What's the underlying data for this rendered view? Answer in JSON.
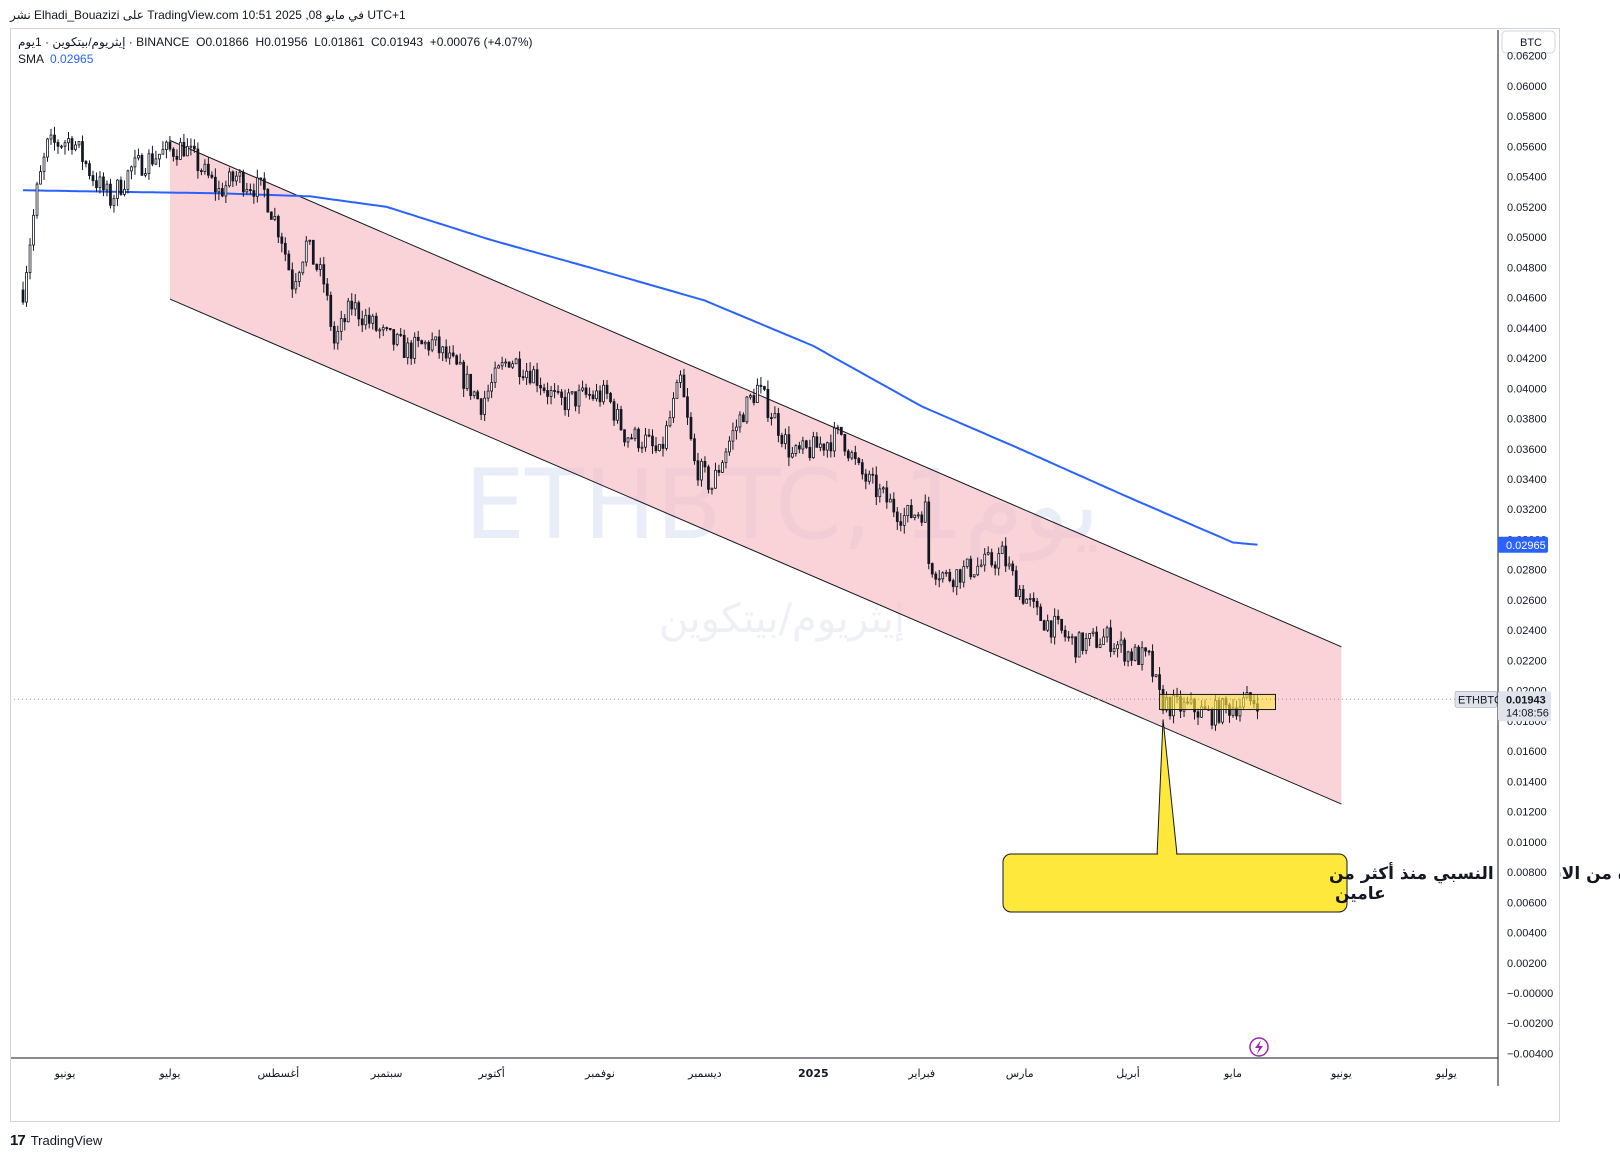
{
  "header": {
    "publish_line": "نشر Elhadi_Bouazizi على TradingView.com 10:51 2025 ,08 في مايو UTC+1"
  },
  "legend": {
    "symbol_line": "إيثريوم/بيتكوين · 1يوم · BINANCE",
    "open_key": "O",
    "open_val": "0.01866",
    "high_key": "H",
    "high_val": "0.01956",
    "low_key": "L",
    "low_val": "0.01861",
    "close_key": "C",
    "close_val": "0.01943",
    "change": "+0.00076 (+4.07%)",
    "sma_label": "SMA",
    "sma_value": "0.02965"
  },
  "watermark": {
    "main": "ETHBTC, 1يوم",
    "sub": "إيثريوم/بيتكوين"
  },
  "price_scale": {
    "currency": "BTC",
    "price_tag_symbol": "ETHBTC",
    "price_tag_value": "0.01943",
    "countdown": "14:08:56",
    "sma_tag_value": "0.02965"
  },
  "annotation": {
    "line1": "أطول فترة من الاستقرار النسبي منذ أكثر من",
    "line2": "عامين"
  },
  "footer": {
    "brand": "TradingView"
  },
  "colors": {
    "candle": "#131722",
    "sma": "#2962ff",
    "channel_fill": "#f8bbc4",
    "channel_line": "#131722",
    "callout_fill": "#ffe83c",
    "sma_tag_bg": "#2962ff",
    "price_tag_bg": "#e0e3eb"
  },
  "chart_data": {
    "type": "candlestick",
    "symbol": "ETHBTC",
    "ylim": [
      -0.0043,
      0.0637
    ],
    "y_ticks": [
      "0.06200",
      "0.06000",
      "0.05800",
      "0.05600",
      "0.05400",
      "0.05200",
      "0.05000",
      "0.04800",
      "0.04600",
      "0.04400",
      "0.04200",
      "0.04000",
      "0.03800",
      "0.03600",
      "0.03400",
      "0.03200",
      "0.03000",
      "0.02800",
      "0.02600",
      "0.02400",
      "0.02200",
      "0.02000",
      "0.01800",
      "0.01600",
      "0.01400",
      "0.01200",
      "0.01000",
      "0.00800",
      "0.00600",
      "0.00400",
      "0.00200",
      "−0.00000",
      "−0.00200",
      "−0.00400"
    ],
    "x_ticks": [
      {
        "label": "يونيو",
        "date": "2024-06-01"
      },
      {
        "label": "يوليو",
        "date": "2024-07-01"
      },
      {
        "label": "أغسطس",
        "date": "2024-08-01"
      },
      {
        "label": "سبتمبر",
        "date": "2024-09-01"
      },
      {
        "label": "أكتوبر",
        "date": "2024-10-01"
      },
      {
        "label": "نوفمبر",
        "date": "2024-11-01"
      },
      {
        "label": "ديسمبر",
        "date": "2024-12-01"
      },
      {
        "label": "2025",
        "date": "2025-01-01"
      },
      {
        "label": "فبراير",
        "date": "2025-02-01"
      },
      {
        "label": "مارس",
        "date": "2025-03-01"
      },
      {
        "label": "أبريل",
        "date": "2025-04-01"
      },
      {
        "label": "مايو",
        "date": "2025-05-01"
      },
      {
        "label": "يونيو",
        "date": "2025-06-01"
      },
      {
        "label": "يوليو",
        "date": "2025-07-01"
      }
    ],
    "price_path": [
      [
        "2024-05-20",
        0.0465
      ],
      [
        "2024-05-24",
        0.053
      ],
      [
        "2024-05-27",
        0.056
      ],
      [
        "2024-06-03",
        0.0565
      ],
      [
        "2024-06-09",
        0.054
      ],
      [
        "2024-06-14",
        0.0525
      ],
      [
        "2024-06-20",
        0.0545
      ],
      [
        "2024-06-28",
        0.0555
      ],
      [
        "2024-07-05",
        0.056
      ],
      [
        "2024-07-10",
        0.0545
      ],
      [
        "2024-07-15",
        0.053
      ],
      [
        "2024-07-20",
        0.054
      ],
      [
        "2024-07-28",
        0.053
      ],
      [
        "2024-08-02",
        0.05
      ],
      [
        "2024-08-05",
        0.047
      ],
      [
        "2024-08-09",
        0.0495
      ],
      [
        "2024-08-14",
        0.047
      ],
      [
        "2024-08-17",
        0.043
      ],
      [
        "2024-08-22",
        0.0455
      ],
      [
        "2024-08-31",
        0.0435
      ],
      [
        "2024-09-07",
        0.0425
      ],
      [
        "2024-09-14",
        0.043
      ],
      [
        "2024-09-22",
        0.041
      ],
      [
        "2024-09-28",
        0.039
      ],
      [
        "2024-10-03",
        0.041
      ],
      [
        "2024-10-06",
        0.042
      ],
      [
        "2024-10-13",
        0.041
      ],
      [
        "2024-10-20",
        0.039
      ],
      [
        "2024-10-28",
        0.0395
      ],
      [
        "2024-11-03",
        0.0395
      ],
      [
        "2024-11-08",
        0.037
      ],
      [
        "2024-11-14",
        0.0365
      ],
      [
        "2024-11-18",
        0.0355
      ],
      [
        "2024-11-21",
        0.038
      ],
      [
        "2024-11-24",
        0.0405
      ],
      [
        "2024-11-28",
        0.035
      ],
      [
        "2024-12-03",
        0.0335
      ],
      [
        "2024-12-07",
        0.036
      ],
      [
        "2024-12-12",
        0.0385
      ],
      [
        "2024-12-16",
        0.04
      ],
      [
        "2024-12-21",
        0.038
      ],
      [
        "2024-12-26",
        0.0355
      ],
      [
        "2025-01-01",
        0.036
      ],
      [
        "2025-01-09",
        0.037
      ],
      [
        "2025-01-14",
        0.0345
      ],
      [
        "2025-01-20",
        0.033
      ],
      [
        "2025-01-27",
        0.0315
      ],
      [
        "2025-02-02",
        0.032
      ],
      [
        "2025-02-03",
        0.0285
      ],
      [
        "2025-02-08",
        0.0275
      ],
      [
        "2025-02-14",
        0.028
      ],
      [
        "2025-02-21",
        0.0285
      ],
      [
        "2025-02-24",
        0.029
      ],
      [
        "2025-02-28",
        0.027
      ],
      [
        "2025-03-06",
        0.025
      ],
      [
        "2025-03-12",
        0.024
      ],
      [
        "2025-03-17",
        0.023
      ],
      [
        "2025-03-26",
        0.0235
      ],
      [
        "2025-04-01",
        0.0225
      ],
      [
        "2025-04-07",
        0.022
      ],
      [
        "2025-04-10",
        0.0195
      ],
      [
        "2025-04-13",
        0.019
      ],
      [
        "2025-04-20",
        0.0188
      ],
      [
        "2025-04-24",
        0.0184
      ],
      [
        "2025-05-01",
        0.019
      ],
      [
        "2025-05-08",
        0.01943
      ]
    ],
    "sma": [
      [
        "2024-05-20",
        0.0531
      ],
      [
        "2024-06-15",
        0.053
      ],
      [
        "2024-07-15",
        0.0529
      ],
      [
        "2024-08-10",
        0.0527
      ],
      [
        "2024-09-01",
        0.052
      ],
      [
        "2024-10-01",
        0.0498
      ],
      [
        "2024-11-01",
        0.0478
      ],
      [
        "2024-12-01",
        0.0458
      ],
      [
        "2025-01-01",
        0.0428
      ],
      [
        "2025-02-01",
        0.0388
      ],
      [
        "2025-03-01",
        0.036
      ],
      [
        "2025-04-01",
        0.0328
      ],
      [
        "2025-05-01",
        0.0298
      ],
      [
        "2025-05-08",
        0.02965
      ]
    ],
    "channel": {
      "upper": [
        [
          "2024-07-01",
          0.0564
        ],
        [
          "2025-06-01",
          0.0229
        ]
      ],
      "lower": [
        [
          "2024-07-01",
          0.0459
        ],
        [
          "2025-06-01",
          0.0125
        ]
      ]
    },
    "range_box": {
      "from": "2025-04-10",
      "to": "2025-05-08",
      "high": 0.01975,
      "low": 0.01875
    },
    "callout_points_to": [
      "2025-04-11",
      0.0181
    ]
  }
}
